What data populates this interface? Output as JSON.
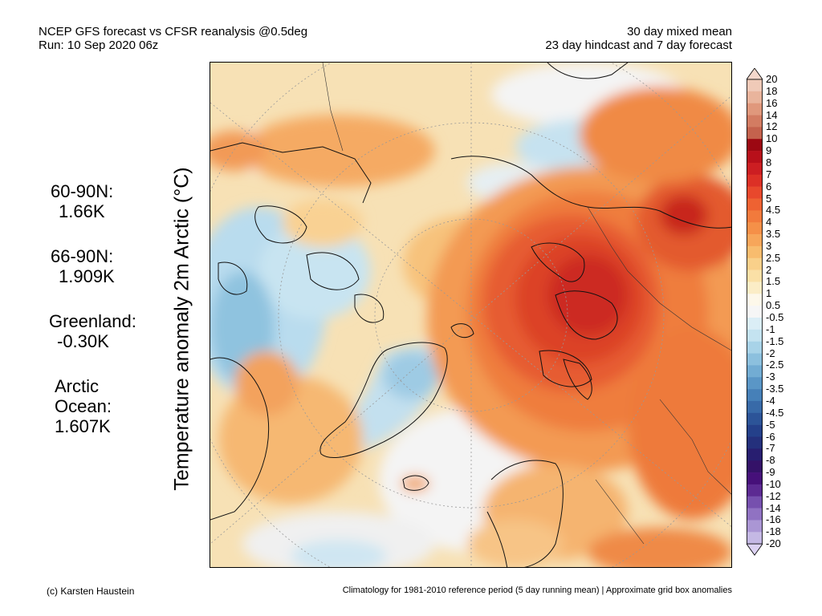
{
  "header": {
    "line1_left": "NCEP GFS forecast vs CFSR reanalysis @0.5deg",
    "line2_left": "Run: 10 Sep 2020 06z",
    "line1_right": "30 day mixed mean",
    "line2_right": "23 day hindcast and 7 day forecast"
  },
  "y_axis_label": "Temperature anomaly 2m Arctic (°C)",
  "stats": [
    {
      "label": "60-90N:",
      "value": "1.66K"
    },
    {
      "label": "66-90N:",
      "value": "1.909K"
    },
    {
      "label": "Greenland:",
      "value": "-0.30K"
    },
    {
      "label": "Arctic",
      "label2": "Ocean:",
      "value": "1.607K"
    }
  ],
  "colorbar": {
    "labels": [
      "20",
      "18",
      "16",
      "14",
      "12",
      "10",
      "9",
      "8",
      "7",
      "6",
      "5",
      "4.5",
      "4",
      "3.5",
      "3",
      "2.5",
      "2",
      "1.5",
      "1",
      "0.5",
      "-0.5",
      "-1",
      "-1.5",
      "-2",
      "-2.5",
      "-3",
      "-3.5",
      "-4",
      "-4.5",
      "-5",
      "-6",
      "-7",
      "-8",
      "-9",
      "-10",
      "-12",
      "-14",
      "-16",
      "-18",
      "-20"
    ],
    "colors": [
      "#f0cab8",
      "#e9b49c",
      "#e0987c",
      "#d37c62",
      "#c4624d",
      "#9c0812",
      "#b8101a",
      "#cc1e22",
      "#dc3026",
      "#e8482c",
      "#ee6232",
      "#f27a3c",
      "#f59048",
      "#f7a65a",
      "#f8bc6e",
      "#f9d08a",
      "#fae0a6",
      "#fbedc6",
      "#fdf8ea",
      "#f6f6f6",
      "#dbeef6",
      "#c4e3f0",
      "#a8d3e8",
      "#8cc0de",
      "#72acd3",
      "#5a96c6",
      "#4680b8",
      "#386aa8",
      "#2c5498",
      "#24408a",
      "#24307c",
      "#281e70",
      "#341268",
      "#46107a",
      "#5c2a92",
      "#7650ae",
      "#9072c2",
      "#aa96d4",
      "#c4b8e4"
    ]
  },
  "footer": {
    "left": "(c) Karsten Haustein",
    "right": "Climatology for 1981-2010 reference period (5 day running mean) | Approximate grid box anomalies"
  }
}
